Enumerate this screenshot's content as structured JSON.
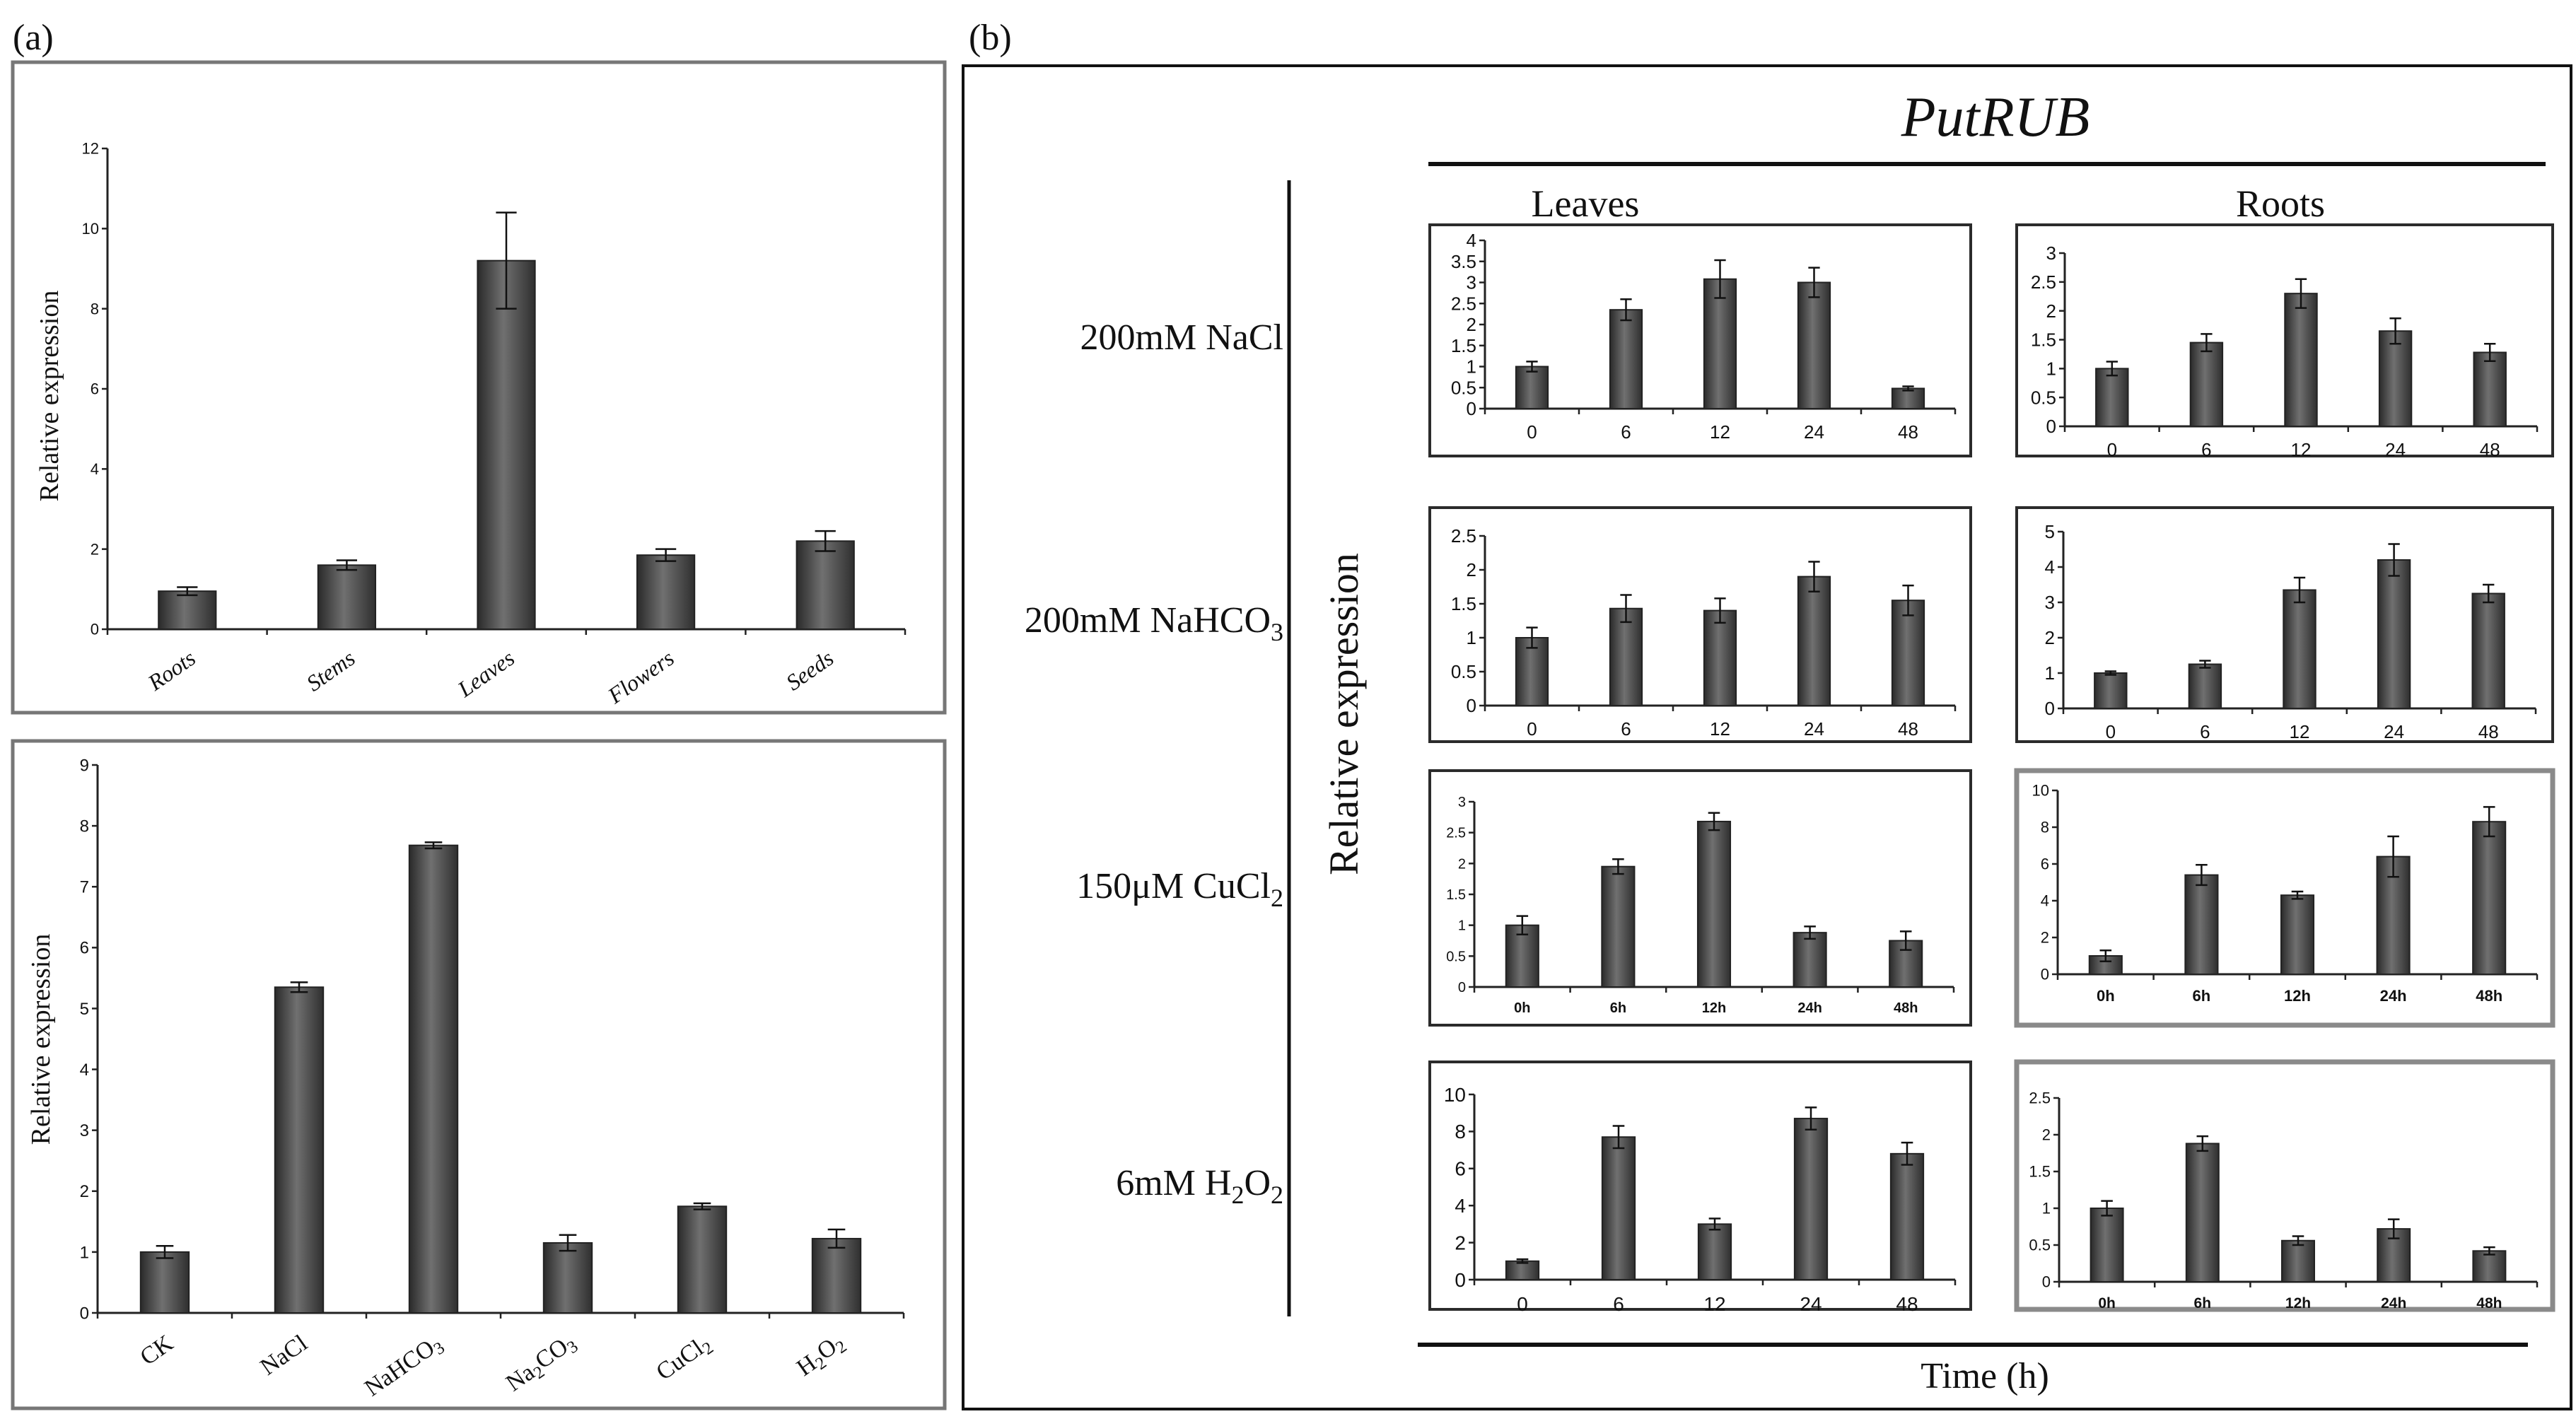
{
  "panel_labels": {
    "a": "(a)",
    "b": "(b)"
  },
  "gene_title": "PutRUB",
  "column_headers": {
    "leaves": "Leaves",
    "roots": "Roots"
  },
  "y_axis_label": "Relative expression",
  "x_axis_label": "Time (h)",
  "row_labels": [
    {
      "text": "200mM NaCl",
      "sub": ""
    },
    {
      "text": "200mM NaHCO",
      "sub": "3"
    },
    {
      "text": "150μM CuCl",
      "sub": "2"
    },
    {
      "text": "6mM H",
      "sub": "2",
      "text2": "O",
      "sub2": "2"
    }
  ],
  "chart_data": [
    {
      "id": "a-top",
      "type": "bar",
      "ylabel": "Relative expression",
      "categories": [
        "Roots",
        "Stems",
        "Leaves",
        "Flowers",
        "Seeds"
      ],
      "values": [
        0.95,
        1.6,
        9.2,
        1.85,
        2.2
      ],
      "errors": [
        0.1,
        0.12,
        1.2,
        0.15,
        0.25
      ],
      "ylim": [
        0,
        12
      ],
      "yticks": [
        0,
        2,
        4,
        6,
        8,
        10,
        12
      ]
    },
    {
      "id": "a-bottom",
      "type": "bar",
      "ylabel": "Relative expression",
      "categories": [
        "CK",
        "NaCl",
        "NaHCO3",
        "Na2CO3",
        "CuCl2",
        "H2O2"
      ],
      "values": [
        1.0,
        5.35,
        7.68,
        1.15,
        1.75,
        1.22
      ],
      "errors": [
        0.1,
        0.08,
        0.05,
        0.13,
        0.05,
        0.15
      ],
      "ylim": [
        0,
        9
      ],
      "yticks": [
        0,
        1,
        2,
        3,
        4,
        5,
        6,
        7,
        8,
        9
      ]
    },
    {
      "id": "b-nacl-leaves",
      "type": "bar",
      "categories": [
        "0",
        "6",
        "12",
        "24",
        "48"
      ],
      "values": [
        1.0,
        2.35,
        3.08,
        3.0,
        0.48
      ],
      "errors": [
        0.12,
        0.25,
        0.45,
        0.35,
        0.05
      ],
      "ylim": [
        0,
        4
      ],
      "yticks": [
        0,
        0.5,
        1,
        1.5,
        2,
        2.5,
        3,
        3.5,
        4
      ]
    },
    {
      "id": "b-nacl-roots",
      "type": "bar",
      "categories": [
        "0",
        "6",
        "12",
        "24",
        "48"
      ],
      "values": [
        1.0,
        1.45,
        2.3,
        1.65,
        1.28
      ],
      "errors": [
        0.12,
        0.15,
        0.25,
        0.22,
        0.15
      ],
      "ylim": [
        0,
        3
      ],
      "yticks": [
        0,
        0.5,
        1,
        1.5,
        2,
        2.5,
        3
      ]
    },
    {
      "id": "b-nahco3-leaves",
      "type": "bar",
      "categories": [
        "0",
        "6",
        "12",
        "24",
        "48"
      ],
      "values": [
        1.0,
        1.43,
        1.4,
        1.9,
        1.55
      ],
      "errors": [
        0.15,
        0.2,
        0.18,
        0.22,
        0.22
      ],
      "ylim": [
        0,
        2.5
      ],
      "yticks": [
        0,
        0.5,
        1,
        1.5,
        2,
        2.5
      ]
    },
    {
      "id": "b-nahco3-roots",
      "type": "bar",
      "categories": [
        "0",
        "6",
        "12",
        "24",
        "48"
      ],
      "values": [
        1.0,
        1.25,
        3.35,
        4.2,
        3.25
      ],
      "errors": [
        0.05,
        0.1,
        0.35,
        0.45,
        0.25
      ],
      "ylim": [
        0,
        5
      ],
      "yticks": [
        0,
        1,
        2,
        3,
        4,
        5
      ]
    },
    {
      "id": "b-cucl2-leaves",
      "type": "bar",
      "categories": [
        "0h",
        "6h",
        "12h",
        "24h",
        "48h"
      ],
      "values": [
        1.0,
        1.95,
        2.68,
        0.88,
        0.75
      ],
      "errors": [
        0.15,
        0.12,
        0.14,
        0.1,
        0.15
      ],
      "ylim": [
        0,
        3
      ],
      "yticks": [
        0,
        0.5,
        1,
        1.5,
        2,
        2.5,
        3
      ]
    },
    {
      "id": "b-cucl2-roots",
      "type": "bar",
      "categories": [
        "0h",
        "6h",
        "12h",
        "24h",
        "48h"
      ],
      "values": [
        1.0,
        5.4,
        4.3,
        6.4,
        8.3
      ],
      "errors": [
        0.3,
        0.55,
        0.2,
        1.1,
        0.8
      ],
      "ylim": [
        0,
        10
      ],
      "yticks": [
        0,
        2,
        4,
        6,
        8,
        10
      ]
    },
    {
      "id": "b-h2o2-leaves",
      "type": "bar",
      "categories": [
        "0",
        "6",
        "12",
        "24",
        "48"
      ],
      "values": [
        1.0,
        7.7,
        3.0,
        8.7,
        6.8
      ],
      "errors": [
        0.1,
        0.6,
        0.3,
        0.6,
        0.6
      ],
      "ylim": [
        0,
        10
      ],
      "yticks": [
        0,
        2,
        4,
        6,
        8,
        10
      ]
    },
    {
      "id": "b-h2o2-roots",
      "type": "bar",
      "categories": [
        "0h",
        "6h",
        "12h",
        "24h",
        "48h"
      ],
      "values": [
        1.0,
        1.88,
        0.56,
        0.72,
        0.42
      ],
      "errors": [
        0.1,
        0.1,
        0.06,
        0.13,
        0.05
      ],
      "ylim": [
        0,
        2.5
      ],
      "yticks": [
        0,
        0.5,
        1,
        1.5,
        2,
        2.5
      ]
    }
  ]
}
